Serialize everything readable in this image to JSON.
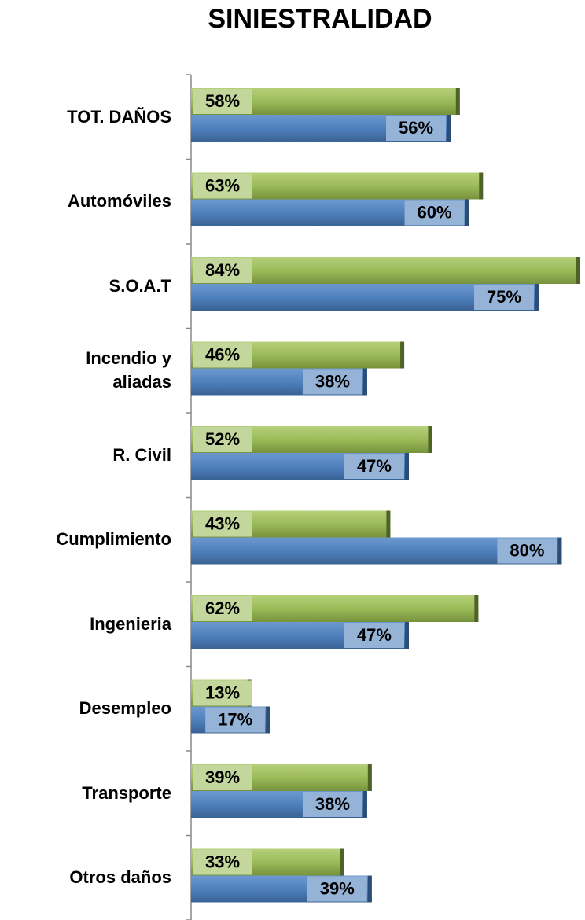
{
  "chart_data": {
    "type": "bar",
    "orientation": "horizontal",
    "title": "SINIESTRALIDAD",
    "categories": [
      "TOT. DAÑOS",
      "Automóviles",
      "S.O.A.T",
      "Incendio y aliadas",
      "R. Civil",
      "Cumplimiento",
      "Ingenieria",
      "Desempleo",
      "Transporte",
      "Otros daños"
    ],
    "series": [
      {
        "color": "#9bbb59",
        "label_color": "#c3d69b",
        "values": [
          58,
          63,
          84,
          46,
          52,
          43,
          62,
          13,
          39,
          33
        ],
        "value_labels": [
          "58%",
          "63%",
          "84%",
          "46%",
          "52%",
          "43%",
          "62%",
          "13%",
          "39%",
          "33%"
        ]
      },
      {
        "color": "#4f81bd",
        "label_color": "#95b3d7",
        "values": [
          56,
          60,
          75,
          38,
          47,
          80,
          47,
          17,
          38,
          39
        ],
        "value_labels": [
          "56%",
          "60%",
          "75%",
          "38%",
          "47%",
          "80%",
          "47%",
          "17%",
          "38%",
          "39%"
        ]
      }
    ]
  }
}
